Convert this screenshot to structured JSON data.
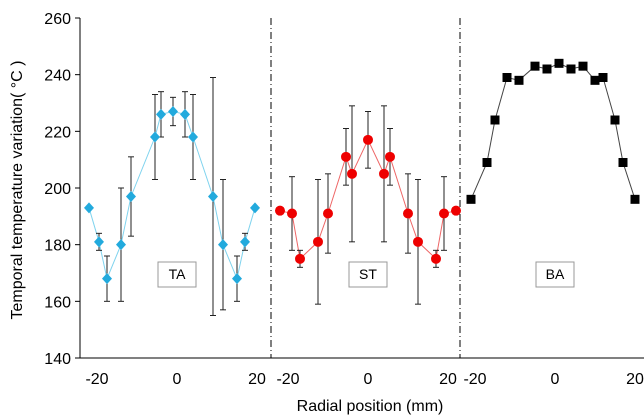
{
  "chart_data": {
    "type": "scatter",
    "ylabel": "Temporal temperature variation( °C )",
    "xlabel": "Radial position (mm)",
    "ylim": [
      140,
      260
    ],
    "yticks": [
      140,
      160,
      180,
      200,
      220,
      240,
      260
    ],
    "xlim": [
      -23,
      23
    ],
    "xticks": [
      -20,
      0,
      20
    ],
    "grid": false,
    "panels": [
      {
        "label": "TA",
        "color": "#22aadd",
        "line_color": "#7fd3ee",
        "marker": "diamond",
        "x": [
          -22,
          -19.5,
          -17.5,
          -14,
          -11.5,
          -5.5,
          -4,
          -1,
          2,
          4,
          9,
          11.5,
          15,
          17,
          19.5
        ],
        "y": [
          193,
          181,
          168,
          180,
          197,
          218,
          226,
          227,
          226,
          218,
          197,
          180,
          168,
          181,
          193
        ],
        "err": [
          0,
          3,
          8,
          20,
          14,
          15,
          8,
          5,
          8,
          15,
          42,
          23,
          8,
          3,
          0
        ]
      },
      {
        "label": "ST",
        "color": "#ee0000",
        "line_color": "#ee6666",
        "marker": "circle",
        "x": [
          -22,
          -19,
          -17,
          -12.5,
          -10,
          -5.5,
          -4,
          0,
          4,
          5.5,
          10,
          12.5,
          17,
          19,
          22
        ],
        "y": [
          192,
          191,
          175,
          181,
          191,
          211,
          205,
          217,
          205,
          211,
          191,
          181,
          175,
          191,
          192
        ],
        "err": [
          0,
          13,
          3,
          22,
          14,
          10,
          24,
          10,
          24,
          10,
          14,
          22,
          3,
          13,
          0
        ]
      },
      {
        "label": "BA",
        "color": "#000000",
        "line_color": "#444444",
        "marker": "square",
        "x": [
          -21,
          -17,
          -15,
          -12,
          -9,
          -5,
          -2,
          1,
          4,
          7,
          10,
          12,
          15,
          17,
          20
        ],
        "y": [
          196,
          209,
          224,
          239,
          238,
          243,
          242,
          244,
          242,
          243,
          238,
          239,
          224,
          209,
          196
        ],
        "err": [
          0,
          0,
          0,
          0,
          0,
          0,
          0,
          0,
          0,
          0,
          0,
          0,
          0,
          0,
          0
        ]
      }
    ]
  }
}
